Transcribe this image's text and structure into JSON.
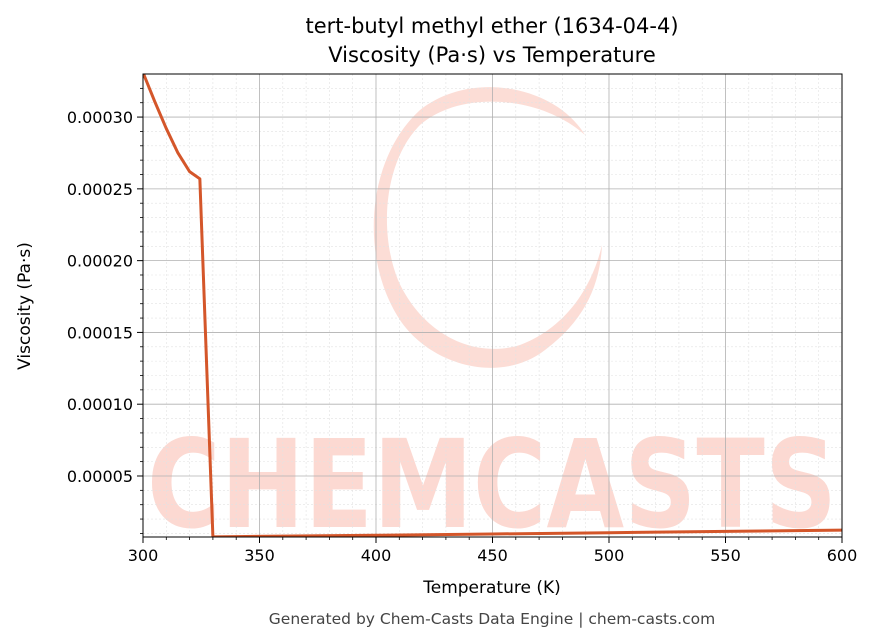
{
  "colors": {
    "line": "#d4562a",
    "watermark": "#fcd9d2",
    "grid_major": "#b0b0b0",
    "grid_minor": "#e2e2e2",
    "footer_text": "#444444"
  },
  "watermark": {
    "text": "CHEMCASTS"
  },
  "footer": {
    "text": "Generated by Chem-Casts Data Engine | chem-casts.com"
  },
  "chart_data": {
    "type": "line",
    "title": "tert-butyl methyl ether (1634-04-4)",
    "subtitle": "Viscosity (Pa·s) vs Temperature",
    "xlabel": "Temperature (K)",
    "ylabel": "Viscosity (Pa·s)",
    "xlim": [
      300,
      600
    ],
    "ylim": [
      7.5e-06,
      0.00033
    ],
    "x_ticks": [
      300,
      350,
      400,
      450,
      500,
      550,
      600
    ],
    "x_tick_labels": [
      "300",
      "350",
      "400",
      "450",
      "500",
      "550",
      "600"
    ],
    "y_ticks": [
      5e-05,
      0.0001,
      0.00015,
      0.0002,
      0.00025,
      0.0003
    ],
    "y_tick_labels": [
      "0.00005",
      "0.00010",
      "0.00015",
      "0.00020",
      "0.00025",
      "0.00030"
    ],
    "grid": true,
    "minor_grid": true,
    "series": [
      {
        "x": [
          300,
          305,
          310,
          315,
          320,
          324.4,
          330,
          340,
          360,
          400,
          450,
          500,
          550,
          600
        ],
        "y": [
          0.000331,
          0.000311,
          0.000292,
          0.000275,
          0.000262,
          0.000257,
          7.6e-06,
          7.8e-06,
          8.1e-06,
          8.7e-06,
          9.6e-06,
          1.05e-05,
          1.14e-05,
          1.23e-05
        ]
      }
    ]
  }
}
